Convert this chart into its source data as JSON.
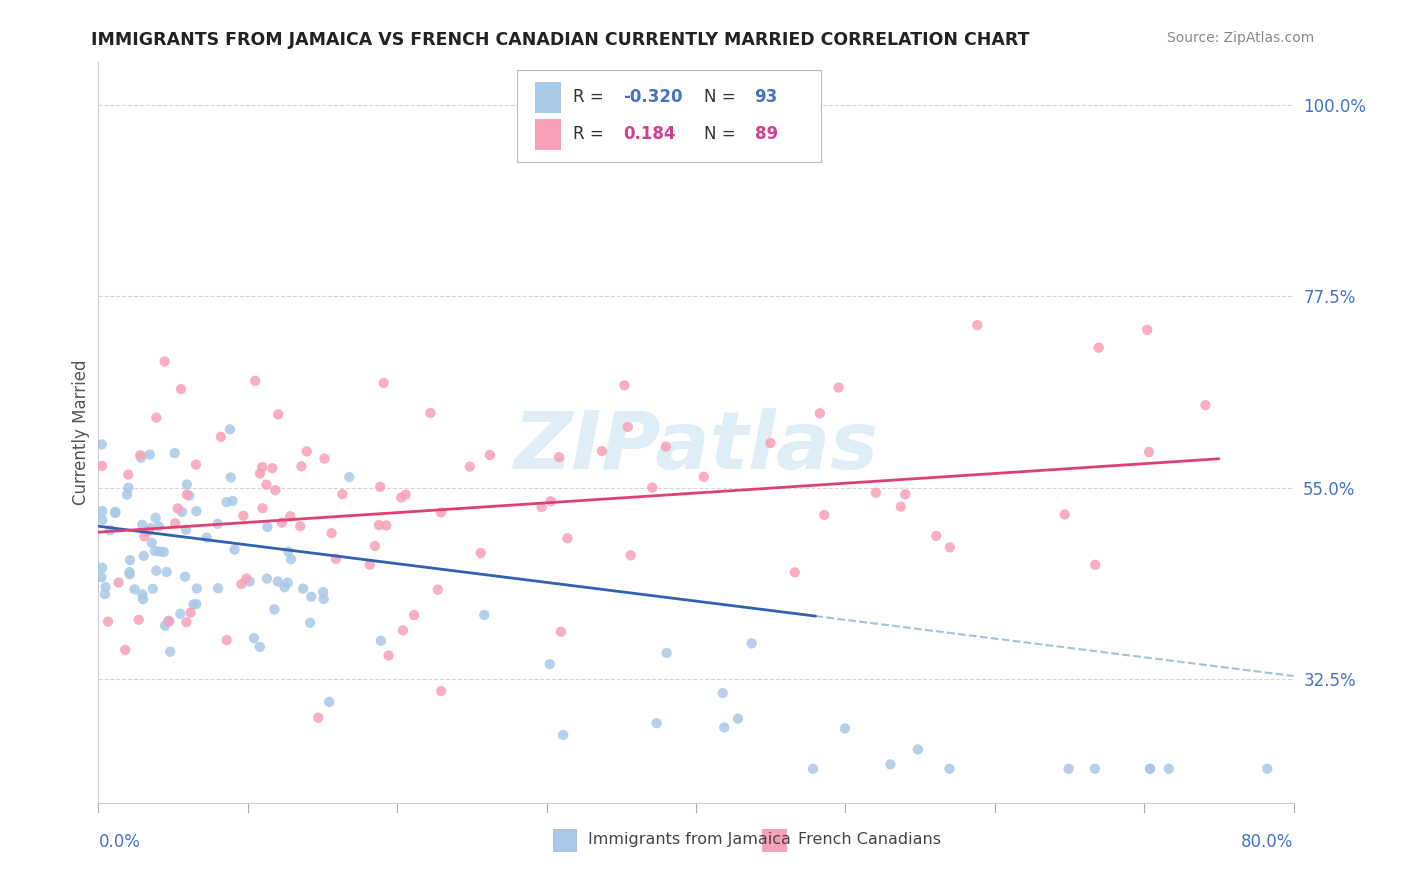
{
  "title": "IMMIGRANTS FROM JAMAICA VS FRENCH CANADIAN CURRENTLY MARRIED CORRELATION CHART",
  "source": "Source: ZipAtlas.com",
  "ylabel": "Currently Married",
  "right_ytick_labels": [
    "32.5%",
    "55.0%",
    "77.5%",
    "100.0%"
  ],
  "right_ytick_vals": [
    0.325,
    0.55,
    0.775,
    1.0
  ],
  "series1_name": "Immigrants from Jamaica",
  "series1_color": "#a8c8e8",
  "series1_line_color": "#3060b0",
  "series1_R": -0.32,
  "series1_N": 93,
  "series2_name": "French Canadians",
  "series2_color": "#f8a0b8",
  "series2_line_color": "#e04070",
  "series2_R": 0.184,
  "series2_N": 89,
  "background_color": "#ffffff",
  "grid_color": "#cccccc",
  "watermark": "ZIPatlas",
  "xlim": [
    0.0,
    0.8
  ],
  "ylim": [
    0.18,
    1.05
  ],
  "title_fontsize": 12.5,
  "source_fontsize": 10,
  "legend_R1_color": "#4472c4",
  "legend_R2_color": "#d04090"
}
